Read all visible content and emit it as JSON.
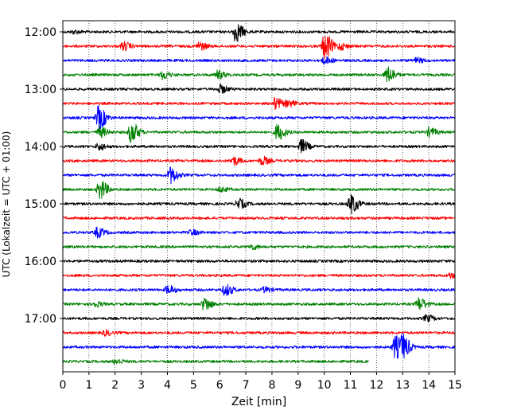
{
  "chart_data": {
    "type": "line",
    "title": "",
    "xlabel": "Zeit  [min]",
    "ylabel": "UTC (Lokalzeit = UTC + 01:00)",
    "xlim": [
      0,
      15
    ],
    "x_ticks": [
      0,
      1,
      2,
      3,
      4,
      5,
      6,
      7,
      8,
      9,
      10,
      11,
      12,
      13,
      14,
      15
    ],
    "y_tick_labels": [
      "12:00",
      "13:00",
      "14:00",
      "15:00",
      "16:00",
      "17:00"
    ],
    "grid": "vertical dotted",
    "trace_interval_minutes": 15,
    "trace_color_cycle": [
      "#000000",
      "#ff0000",
      "#0000ff",
      "#008000"
    ],
    "traces": [
      {
        "start": "12:00",
        "end_min": 15,
        "events": [
          [
            6.6,
            12
          ],
          [
            0.4,
            2
          ]
        ]
      },
      {
        "start": "12:15",
        "end_min": 15,
        "events": [
          [
            10.0,
            16
          ],
          [
            2.3,
            5
          ],
          [
            5.2,
            5
          ],
          [
            10.6,
            4
          ]
        ]
      },
      {
        "start": "12:30",
        "end_min": 15,
        "events": [
          [
            10.0,
            4
          ],
          [
            13.5,
            3
          ]
        ]
      },
      {
        "start": "12:45",
        "end_min": 15,
        "events": [
          [
            3.8,
            5
          ],
          [
            5.9,
            5
          ],
          [
            12.4,
            10
          ]
        ]
      },
      {
        "start": "13:00",
        "end_min": 15,
        "events": [
          [
            6.0,
            5
          ]
        ]
      },
      {
        "start": "13:15",
        "end_min": 15,
        "events": [
          [
            8.1,
            7
          ],
          [
            8.6,
            4
          ]
        ]
      },
      {
        "start": "13:30",
        "end_min": 15,
        "events": [
          [
            1.35,
            14
          ]
        ]
      },
      {
        "start": "13:45",
        "end_min": 15,
        "events": [
          [
            2.6,
            13
          ],
          [
            8.2,
            10
          ],
          [
            1.4,
            6
          ],
          [
            14.0,
            5
          ]
        ]
      },
      {
        "start": "14:00",
        "end_min": 15,
        "events": [
          [
            9.1,
            8
          ],
          [
            1.35,
            4
          ]
        ]
      },
      {
        "start": "14:15",
        "end_min": 15,
        "events": [
          [
            6.5,
            5
          ],
          [
            7.6,
            5
          ]
        ]
      },
      {
        "start": "14:30",
        "end_min": 15,
        "events": [
          [
            4.1,
            10
          ]
        ]
      },
      {
        "start": "14:45",
        "end_min": 15,
        "events": [
          [
            1.4,
            12
          ],
          [
            6.0,
            3
          ]
        ]
      },
      {
        "start": "15:00",
        "end_min": 15,
        "events": [
          [
            6.7,
            6
          ],
          [
            11.0,
            12
          ]
        ]
      },
      {
        "start": "15:15",
        "end_min": 15,
        "events": []
      },
      {
        "start": "15:30",
        "end_min": 15,
        "events": [
          [
            1.3,
            6
          ],
          [
            4.9,
            3
          ]
        ]
      },
      {
        "start": "15:45",
        "end_min": 15,
        "events": [
          [
            7.2,
            3
          ]
        ]
      },
      {
        "start": "16:00",
        "end_min": 15,
        "events": []
      },
      {
        "start": "16:15",
        "end_min": 15,
        "events": [
          [
            14.8,
            3
          ]
        ]
      },
      {
        "start": "16:30",
        "end_min": 15,
        "events": [
          [
            4.0,
            5
          ],
          [
            6.2,
            7
          ],
          [
            7.7,
            3
          ]
        ]
      },
      {
        "start": "16:45",
        "end_min": 15,
        "events": [
          [
            5.4,
            8
          ],
          [
            13.6,
            8
          ],
          [
            1.2,
            3
          ]
        ]
      },
      {
        "start": "17:00",
        "end_min": 15,
        "events": [
          [
            13.9,
            4
          ]
        ]
      },
      {
        "start": "17:15",
        "end_min": 15,
        "events": [
          [
            1.6,
            3
          ]
        ]
      },
      {
        "start": "17:30",
        "end_min": 15,
        "events": [
          [
            12.7,
            14
          ],
          [
            13.0,
            12
          ]
        ]
      },
      {
        "start": "17:45",
        "end_min": 11.7,
        "events": [
          [
            2.0,
            3
          ]
        ]
      }
    ]
  }
}
